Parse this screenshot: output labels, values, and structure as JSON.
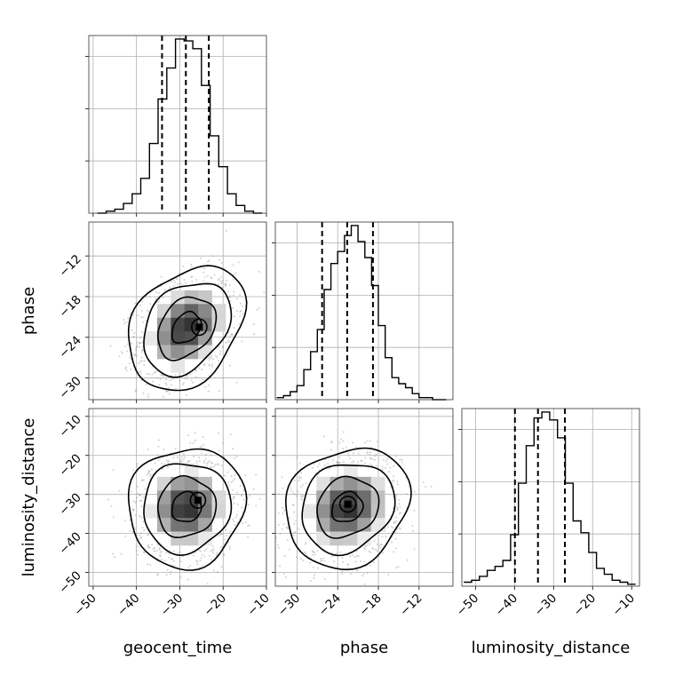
{
  "chart_data": {
    "type": "corner",
    "parameters": [
      "geocent_time",
      "phase",
      "luminosity_distance"
    ],
    "ranges": {
      "geocent_time": [
        -51,
        -10
      ],
      "phase": [
        -33.2,
        -7
      ],
      "luminosity_distance": [
        -53.5,
        -8
      ]
    },
    "ticks": {
      "geocent_time": [
        "−50",
        "−40",
        "−30",
        "−20",
        "−10"
      ],
      "phase": [
        "−30",
        "−24",
        "−18",
        "−12"
      ],
      "luminosity_distance": [
        "−50",
        "−40",
        "−30",
        "−20",
        "−10"
      ]
    },
    "tick_values": {
      "geocent_time": [
        -50,
        -40,
        -30,
        -20,
        -10
      ],
      "phase": [
        -30,
        -24,
        -18,
        -12
      ],
      "luminosity_distance": [
        -50,
        -40,
        -30,
        -20,
        -10
      ]
    },
    "histograms": {
      "geocent_time": {
        "bin_edges": [
          -49,
          -47,
          -45,
          -43,
          -41,
          -39,
          -37,
          -35,
          -33,
          -31,
          -29,
          -27,
          -25,
          -23,
          -21,
          -19,
          -17,
          -15,
          -13,
          -11
        ],
        "counts": [
          0,
          1,
          2,
          5,
          10,
          18,
          36,
          59,
          75,
          90,
          89,
          85,
          66,
          40,
          24,
          10,
          4,
          1,
          0
        ],
        "quantiles": [
          -34.1,
          -28.6,
          -23.3
        ]
      },
      "phase": {
        "bin_edges": [
          -33,
          -32,
          -31,
          -30,
          -29,
          -28,
          -27,
          -26,
          -25,
          -24,
          -23,
          -22,
          -21,
          -20,
          -19,
          -18,
          -17,
          -16,
          -15,
          -14,
          -13,
          -12,
          -11,
          -10,
          -9,
          -8
        ],
        "counts": [
          1,
          2,
          4,
          7,
          15,
          24,
          35,
          55,
          68,
          74,
          82,
          87,
          79,
          71,
          57,
          37,
          21,
          11,
          8,
          6,
          3,
          1,
          1,
          0,
          0
        ],
        "quantiles": [
          -26.3,
          -22.6,
          -18.8
        ]
      },
      "luminosity_distance": {
        "bin_edges": [
          -53,
          -51,
          -49,
          -47,
          -45,
          -43,
          -41,
          -39,
          -37,
          -35,
          -33,
          -31,
          -29,
          -27,
          -25,
          -23,
          -21,
          -19,
          -17,
          -15,
          -13,
          -11,
          -9
        ],
        "counts": [
          2,
          3,
          5,
          8,
          10,
          13,
          26,
          52,
          71,
          85,
          88,
          84,
          75,
          52,
          33,
          27,
          17,
          9,
          6,
          3,
          2,
          1
        ],
        "quantiles": [
          -39.9,
          -34.0,
          -27.1
        ]
      }
    },
    "joint": [
      {
        "x": "geocent_time",
        "y": "phase",
        "mean": [
          -28.5,
          -22.6
        ],
        "std": [
          5.6,
          3.8
        ],
        "rho": 0.3,
        "peak": [
          -25.5,
          -22.5
        ]
      },
      {
        "x": "geocent_time",
        "y": "luminosity_distance",
        "mean": [
          -28.5,
          -33.3
        ],
        "std": [
          5.6,
          6.4
        ],
        "rho": 0.05,
        "peak": [
          -25.8,
          -31.5
        ]
      },
      {
        "x": "phase",
        "y": "luminosity_distance",
        "mean": [
          -22.6,
          -33.3
        ],
        "std": [
          3.8,
          6.4
        ],
        "rho": 0.15,
        "peak": [
          -22.5,
          -32.5
        ]
      }
    ],
    "contour_sigmas": [
      0.5,
      1.0,
      1.5,
      2.0
    ],
    "grid": true
  }
}
